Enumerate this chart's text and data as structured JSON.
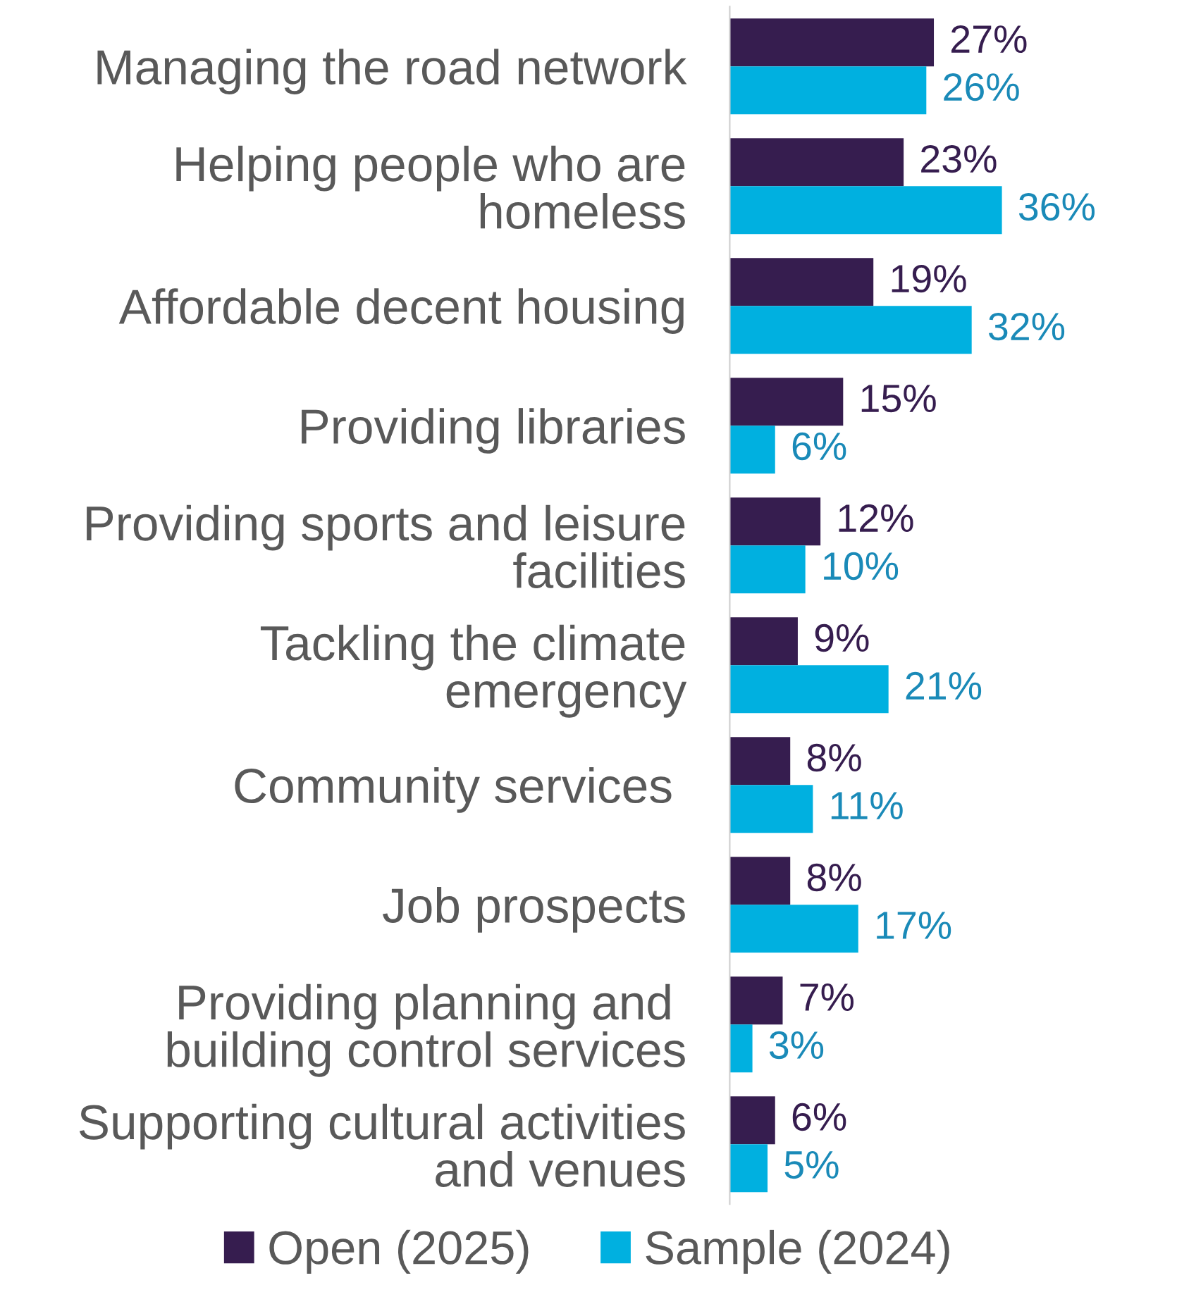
{
  "chart_data": {
    "type": "bar",
    "orientation": "horizontal",
    "categories": [
      "Managing the road network",
      "Helping people who are\nhomeless",
      "Affordable decent housing",
      "Providing libraries",
      "Providing sports and leisure\nfacilities",
      "Tackling the climate\nemergency",
      "Community services ",
      "Job prospects",
      "Providing planning and \nbuilding control services",
      "Supporting cultural activities\nand venues"
    ],
    "series": [
      {
        "name": "Open (2025)",
        "color": "#361d4f",
        "values": [
          27,
          23,
          19,
          15,
          12,
          9,
          8,
          8,
          7,
          6
        ],
        "value_labels": [
          "27%",
          "23%",
          "19%",
          "15%",
          "12%",
          "9%",
          "8%",
          "8%",
          "7%",
          "6%"
        ]
      },
      {
        "name": "Sample (2024)",
        "color": "#00b0e0",
        "values": [
          26,
          36,
          32,
          6,
          10,
          21,
          11,
          17,
          3,
          5
        ],
        "value_labels": [
          "26%",
          "36%",
          "32%",
          "6%",
          "10%",
          "21%",
          "11%",
          "17%",
          "3%",
          "5%"
        ]
      }
    ],
    "legend": "bottom",
    "grid": false
  }
}
